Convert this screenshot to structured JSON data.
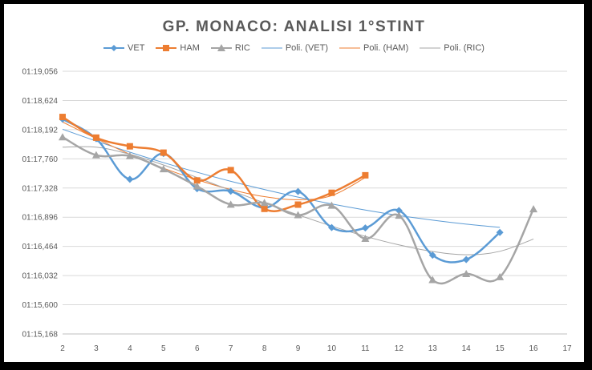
{
  "chart_data": {
    "type": "line",
    "title": "GP. MONACO: ANALISI 1°STINT",
    "xlabel": "",
    "ylabel": "",
    "xlim": [
      2,
      17
    ],
    "x_ticks": [
      "2",
      "3",
      "4",
      "5",
      "6",
      "7",
      "8",
      "9",
      "10",
      "11",
      "12",
      "13",
      "14",
      "15",
      "16",
      "17"
    ],
    "ylim": [
      4515.168,
      4739.056
    ],
    "y_ticks": [
      "01:15,168",
      "01:15,600",
      "01:16,032",
      "01:16,464",
      "01:16,896",
      "01:17,328",
      "01:17,760",
      "01:18,192",
      "01:18,624",
      "01:19,056"
    ],
    "grid": "horizontal",
    "legend_position": "top",
    "series": [
      {
        "name": "VET",
        "color": "#5B9BD5",
        "marker": "diamond",
        "x": [
          2,
          3,
          4,
          5,
          6,
          7,
          8,
          9,
          10,
          11,
          12,
          13,
          14,
          15
        ],
        "y": [
          4698.3,
          4681.6,
          4647.0,
          4668.9,
          4639.0,
          4636.8,
          4622.7,
          4636.6,
          4605.9,
          4605.5,
          4620.4,
          4582.3,
          4578.6,
          4601.7
        ]
      },
      {
        "name": "HAM",
        "color": "#ED7D31",
        "marker": "square",
        "x": [
          2,
          3,
          4,
          5,
          6,
          7,
          8,
          9,
          10,
          11
        ],
        "y": [
          4700.1,
          4682.5,
          4675.1,
          4669.7,
          4646.0,
          4654.8,
          4621.8,
          4625.4,
          4635.5,
          4650.4
        ]
      },
      {
        "name": "RIC",
        "color": "#A5A5A5",
        "marker": "triangle",
        "x": [
          2,
          3,
          4,
          5,
          6,
          7,
          8,
          9,
          10,
          11,
          12,
          13,
          14,
          15,
          16
        ],
        "y": [
          4682.9,
          4667.6,
          4666.9,
          4655.7,
          4641.0,
          4625.5,
          4626.9,
          4616.5,
          4624.6,
          4596.4,
          4616.1,
          4561.2,
          4566.4,
          4563.7,
          4621.6
        ]
      }
    ],
    "trendlines": [
      {
        "name": "Poli. (VET)",
        "color": "#5B9BD5",
        "x": [
          2,
          3,
          4,
          5,
          6,
          7,
          8,
          9,
          10,
          11,
          12,
          13,
          14,
          15
        ],
        "y": [
          4689.7,
          4679.6,
          4670.1,
          4661.2,
          4653.0,
          4645.3,
          4638.3,
          4631.8,
          4626.0,
          4620.8,
          4616.1,
          4612.2,
          4608.8,
          4606.0
        ]
      },
      {
        "name": "Poli. (HAM)",
        "color": "#ED7D31",
        "x": [
          2,
          3,
          4,
          5,
          6,
          7,
          8,
          9,
          10,
          11
        ],
        "y": [
          4695.8,
          4681.7,
          4668.3,
          4656.5,
          4646.6,
          4638.3,
          4632.2,
          4629.6,
          4633.1,
          4648.5
        ]
      },
      {
        "name": "Poli. (RIC)",
        "color": "#A5A5A5",
        "x": [
          2,
          3,
          4,
          5,
          6,
          7,
          8,
          9,
          10,
          11,
          12,
          13,
          14,
          15,
          16
        ],
        "y": [
          4674.4,
          4674.4,
          4668.3,
          4659.2,
          4648.5,
          4637.5,
          4626.9,
          4616.7,
          4607.1,
          4598.4,
          4591.1,
          4585.5,
          4582.7,
          4585.6,
          4596.1
        ]
      }
    ]
  }
}
